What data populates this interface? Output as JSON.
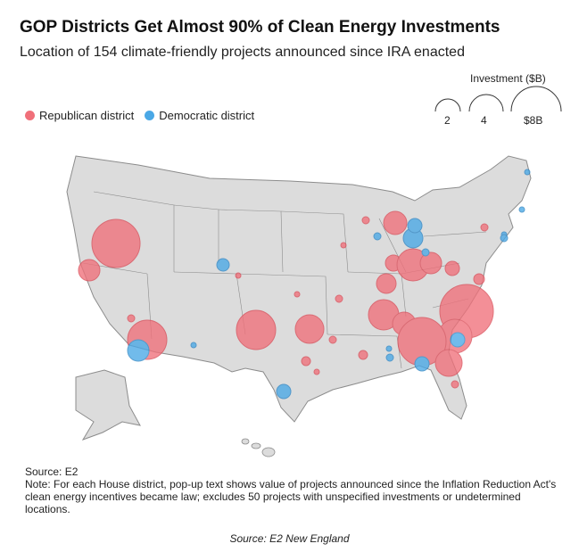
{
  "title": "GOP Districts Get Almost 90% of Clean Energy Investments",
  "subtitle": "Location of 154 climate-friendly projects announced since IRA enacted",
  "legend": {
    "republican_label": "Republican district",
    "democratic_label": "Democratic district",
    "republican_color": "#f0707a",
    "democratic_color": "#4aa8e6"
  },
  "size_legend": {
    "title": "Investment ($B)",
    "labels": [
      "2",
      "4",
      "$8B"
    ]
  },
  "notes": {
    "source": "Source: E2",
    "note": "Note: For each House district, pop-up text shows value of projects announced since the Inflation Reduction Act's clean energy incentives became law; excludes 50 projects with unspecified investments or undetermined locations."
  },
  "caption": "Source: E2 New England",
  "map_data": {
    "regions": [
      "Contiguous United States",
      "Alaska",
      "Hawaii"
    ],
    "projects": [
      {
        "location": "Nevada (northern)",
        "party": "republican",
        "investment_b": 6.5
      },
      {
        "location": "California (northern)",
        "party": "republican",
        "investment_b": 1.2
      },
      {
        "location": "Arizona (Phoenix area)",
        "party": "republican",
        "investment_b": 4.5
      },
      {
        "location": "Arizona (southern)",
        "party": "democratic",
        "investment_b": 1.3
      },
      {
        "location": "Arizona (west)",
        "party": "republican",
        "investment_b": 0.3
      },
      {
        "location": "Colorado (Denver area)",
        "party": "democratic",
        "investment_b": 0.4
      },
      {
        "location": "Colorado (east)",
        "party": "republican",
        "investment_b": 0.1
      },
      {
        "location": "New Mexico",
        "party": "democratic",
        "investment_b": 0.1
      },
      {
        "location": "Oklahoma (west)",
        "party": "republican",
        "investment_b": 4.0
      },
      {
        "location": "Oklahoma (east)",
        "party": "republican",
        "investment_b": 2.2
      },
      {
        "location": "Arkansas",
        "party": "republican",
        "investment_b": 0.2
      },
      {
        "location": "Texas (north)",
        "party": "republican",
        "investment_b": 0.4
      },
      {
        "location": "Texas (Houston area)",
        "party": "republican",
        "investment_b": 0.2
      },
      {
        "location": "Texas (Austin/San Antonio)",
        "party": "democratic",
        "investment_b": 0.7
      },
      {
        "location": "Louisiana",
        "party": "democratic",
        "investment_b": 0.2
      },
      {
        "location": "Mississippi",
        "party": "republican",
        "investment_b": 0.3
      },
      {
        "location": "Michigan (west)",
        "party": "republican",
        "investment_b": 2.0
      },
      {
        "location": "Michigan (Detroit area)",
        "party": "democratic",
        "investment_b": 1.3
      },
      {
        "location": "Michigan (central)",
        "party": "democratic",
        "investment_b": 0.8
      },
      {
        "location": "Illinois (Chicago area)",
        "party": "democratic",
        "investment_b": 0.2
      },
      {
        "location": "Indiana (north)",
        "party": "republican",
        "investment_b": 0.6
      },
      {
        "location": "Ohio (west)",
        "party": "republican",
        "investment_b": 3.0
      },
      {
        "location": "Ohio (east)",
        "party": "republican",
        "investment_b": 1.8
      },
      {
        "location": "Ohio (Columbus)",
        "party": "democratic",
        "investment_b": 0.2
      },
      {
        "location": "Pennsylvania",
        "party": "republican",
        "investment_b": 0.9
      },
      {
        "location": "Kentucky",
        "party": "republican",
        "investment_b": 1.6
      },
      {
        "location": "Tennessee (west)",
        "party": "republican",
        "investment_b": 2.8
      },
      {
        "location": "Tennessee (east)",
        "party": "republican",
        "investment_b": 1.7
      },
      {
        "location": "North Carolina",
        "party": "republican",
        "investment_b": 7.0
      },
      {
        "location": "South Carolina",
        "party": "republican",
        "investment_b": 3.5
      },
      {
        "location": "South Carolina (inland)",
        "party": "democratic",
        "investment_b": 0.9
      },
      {
        "location": "Georgia (central)",
        "party": "republican",
        "investment_b": 6.0
      },
      {
        "location": "Georgia (south)",
        "party": "republican",
        "investment_b": 2.3
      },
      {
        "location": "Georgia (Atlanta area)",
        "party": "democratic",
        "investment_b": 0.9
      },
      {
        "location": "Alabama",
        "party": "democratic",
        "investment_b": 0.2
      },
      {
        "location": "Florida (north)",
        "party": "republican",
        "investment_b": 0.3
      },
      {
        "location": "Wisconsin",
        "party": "republican",
        "investment_b": 0.2
      },
      {
        "location": "New York (west)",
        "party": "republican",
        "investment_b": 0.2
      },
      {
        "location": "New York (Hudson)",
        "party": "democratic",
        "investment_b": 0.1
      },
      {
        "location": "New Jersey",
        "party": "democratic",
        "investment_b": 0.2
      },
      {
        "location": "Massachusetts",
        "party": "democratic",
        "investment_b": 0.1
      },
      {
        "location": "Maine",
        "party": "democratic",
        "investment_b": 0.1
      },
      {
        "location": "Virginia",
        "party": "republican",
        "investment_b": 0.5
      },
      {
        "location": "Missouri",
        "party": "republican",
        "investment_b": 0.2
      },
      {
        "location": "Iowa",
        "party": "republican",
        "investment_b": 0.1
      },
      {
        "location": "Kansas",
        "party": "republican",
        "investment_b": 0.1
      }
    ]
  }
}
